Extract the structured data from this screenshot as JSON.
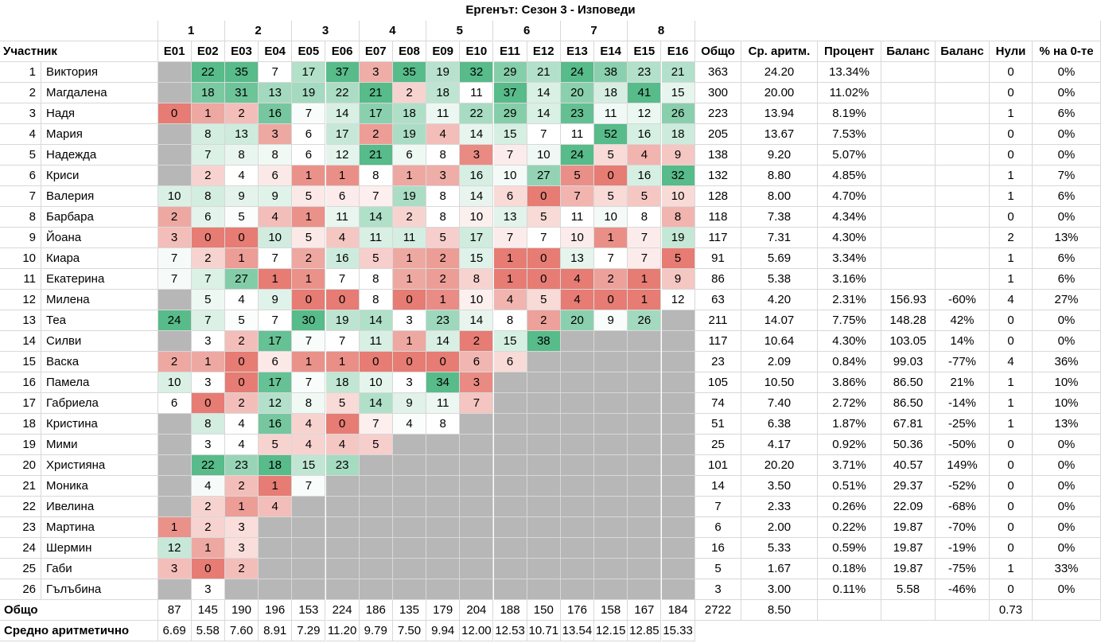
{
  "sheet": {
    "title": "Ергенът: Сезон 3 - Изповеди",
    "weeks": [
      "1",
      "2",
      "3",
      "4",
      "5",
      "6",
      "7",
      "8"
    ],
    "headers": [
      "Участник",
      "E01",
      "E02",
      "E03",
      "E04",
      "E05",
      "E06",
      "E07",
      "E08",
      "E09",
      "E10",
      "E11",
      "E12",
      "E13",
      "E14",
      "E15",
      "E16",
      "Общо",
      "Ср. аритм.",
      "Процент",
      "Баланс",
      "Баланс",
      "Нули",
      "% на 0-те"
    ],
    "rows": [
      {
        "n": "1",
        "name": "Виктория",
        "e": [
          null,
          "22",
          "35",
          "7",
          "17",
          "37",
          "3",
          "35",
          "19",
          "32",
          "29",
          "21",
          "24",
          "38",
          "23",
          "21"
        ],
        "total": "363",
        "avg": "24.20",
        "pct": "13.34%",
        "bal": "",
        "balp": "",
        "zeros": "0",
        "zpct": "0%"
      },
      {
        "n": "2",
        "name": "Магдалена",
        "e": [
          null,
          "18",
          "31",
          "13",
          "19",
          "22",
          "21",
          "2",
          "18",
          "11",
          "37",
          "14",
          "20",
          "18",
          "41",
          "15"
        ],
        "total": "300",
        "avg": "20.00",
        "pct": "11.02%",
        "bal": "",
        "balp": "",
        "zeros": "0",
        "zpct": "0%"
      },
      {
        "n": "3",
        "name": "Надя",
        "e": [
          "0",
          "1",
          "2",
          "16",
          "7",
          "14",
          "17",
          "18",
          "11",
          "22",
          "29",
          "14",
          "23",
          "11",
          "12",
          "26"
        ],
        "total": "223",
        "avg": "13.94",
        "pct": "8.19%",
        "bal": "",
        "balp": "",
        "zeros": "1",
        "zpct": "6%"
      },
      {
        "n": "4",
        "name": "Мария",
        "e": [
          null,
          "8",
          "13",
          "3",
          "6",
          "17",
          "2",
          "19",
          "4",
          "14",
          "15",
          "7",
          "11",
          "52",
          "16",
          "18"
        ],
        "total": "205",
        "avg": "13.67",
        "pct": "7.53%",
        "bal": "",
        "balp": "",
        "zeros": "0",
        "zpct": "0%"
      },
      {
        "n": "5",
        "name": "Надежда",
        "e": [
          null,
          "7",
          "8",
          "8",
          "6",
          "12",
          "21",
          "6",
          "8",
          "3",
          "7",
          "10",
          "24",
          "5",
          "4",
          "9"
        ],
        "total": "138",
        "avg": "9.20",
        "pct": "5.07%",
        "bal": "",
        "balp": "",
        "zeros": "0",
        "zpct": "0%"
      },
      {
        "n": "6",
        "name": "Криси",
        "e": [
          null,
          "2",
          "4",
          "6",
          "1",
          "1",
          "8",
          "1",
          "3",
          "16",
          "10",
          "27",
          "5",
          "0",
          "16",
          "32"
        ],
        "total": "132",
        "avg": "8.80",
        "pct": "4.85%",
        "bal": "",
        "balp": "",
        "zeros": "1",
        "zpct": "7%"
      },
      {
        "n": "7",
        "name": "Валерия",
        "e": [
          "10",
          "8",
          "9",
          "9",
          "5",
          "6",
          "7",
          "19",
          "8",
          "14",
          "6",
          "0",
          "7",
          "5",
          "5",
          "10"
        ],
        "total": "128",
        "avg": "8.00",
        "pct": "4.70%",
        "bal": "",
        "balp": "",
        "zeros": "1",
        "zpct": "6%"
      },
      {
        "n": "8",
        "name": "Барбара",
        "e": [
          "2",
          "6",
          "5",
          "4",
          "1",
          "11",
          "14",
          "2",
          "8",
          "10",
          "13",
          "5",
          "11",
          "10",
          "8",
          "8"
        ],
        "total": "118",
        "avg": "7.38",
        "pct": "4.34%",
        "bal": "",
        "balp": "",
        "zeros": "0",
        "zpct": "0%"
      },
      {
        "n": "9",
        "name": "Йоана",
        "e": [
          "3",
          "0",
          "0",
          "10",
          "5",
          "4",
          "11",
          "11",
          "5",
          "17",
          "7",
          "7",
          "10",
          "1",
          "7",
          "19"
        ],
        "total": "117",
        "avg": "7.31",
        "pct": "4.30%",
        "bal": "",
        "balp": "",
        "zeros": "2",
        "zpct": "13%"
      },
      {
        "n": "10",
        "name": "Киара",
        "e": [
          "7",
          "2",
          "1",
          "7",
          "2",
          "16",
          "5",
          "1",
          "2",
          "15",
          "1",
          "0",
          "13",
          "7",
          "7",
          "5"
        ],
        "total": "91",
        "avg": "5.69",
        "pct": "3.34%",
        "bal": "",
        "balp": "",
        "zeros": "1",
        "zpct": "6%"
      },
      {
        "n": "11",
        "name": "Екатерина",
        "e": [
          "7",
          "7",
          "27",
          "1",
          "1",
          "7",
          "8",
          "1",
          "2",
          "8",
          "1",
          "0",
          "4",
          "2",
          "1",
          "9"
        ],
        "total": "86",
        "avg": "5.38",
        "pct": "3.16%",
        "bal": "",
        "balp": "",
        "zeros": "1",
        "zpct": "6%"
      },
      {
        "n": "12",
        "name": "Милена",
        "e": [
          null,
          "5",
          "4",
          "9",
          "0",
          "0",
          "8",
          "0",
          "1",
          "10",
          "4",
          "5",
          "4",
          "0",
          "1",
          "12"
        ],
        "total": "63",
        "avg": "4.20",
        "pct": "2.31%",
        "bal": "156.93",
        "balp": "-60%",
        "zeros": "4",
        "zpct": "27%"
      },
      {
        "n": "13",
        "name": "Теа",
        "e": [
          "24",
          "7",
          "5",
          "7",
          "30",
          "19",
          "14",
          "3",
          "23",
          "14",
          "8",
          "2",
          "20",
          "9",
          "26",
          null
        ],
        "total": "211",
        "avg": "14.07",
        "pct": "7.75%",
        "bal": "148.28",
        "balp": "42%",
        "zeros": "0",
        "zpct": "0%"
      },
      {
        "n": "14",
        "name": "Силви",
        "e": [
          null,
          "3",
          "2",
          "17",
          "7",
          "7",
          "11",
          "1",
          "14",
          "2",
          "15",
          "38",
          null,
          null,
          null,
          null
        ],
        "total": "117",
        "avg": "10.64",
        "pct": "4.30%",
        "bal": "103.05",
        "balp": "14%",
        "zeros": "0",
        "zpct": "0%"
      },
      {
        "n": "15",
        "name": "Васка",
        "e": [
          "2",
          "1",
          "0",
          "6",
          "1",
          "1",
          "0",
          "0",
          "0",
          "6",
          "6",
          null,
          null,
          null,
          null,
          null
        ],
        "total": "23",
        "avg": "2.09",
        "pct": "0.84%",
        "bal": "99.03",
        "balp": "-77%",
        "zeros": "4",
        "zpct": "36%"
      },
      {
        "n": "16",
        "name": "Памела",
        "e": [
          "10",
          "3",
          "0",
          "17",
          "7",
          "18",
          "10",
          "3",
          "34",
          "3",
          null,
          null,
          null,
          null,
          null,
          null
        ],
        "total": "105",
        "avg": "10.50",
        "pct": "3.86%",
        "bal": "86.50",
        "balp": "21%",
        "zeros": "1",
        "zpct": "10%"
      },
      {
        "n": "17",
        "name": "Габриела",
        "e": [
          "6",
          "0",
          "2",
          "12",
          "8",
          "5",
          "14",
          "9",
          "11",
          "7",
          null,
          null,
          null,
          null,
          null,
          null
        ],
        "total": "74",
        "avg": "7.40",
        "pct": "2.72%",
        "bal": "86.50",
        "balp": "-14%",
        "zeros": "1",
        "zpct": "10%"
      },
      {
        "n": "18",
        "name": "Кристина",
        "e": [
          null,
          "8",
          "4",
          "16",
          "4",
          "0",
          "7",
          "4",
          "8",
          null,
          null,
          null,
          null,
          null,
          null,
          null
        ],
        "total": "51",
        "avg": "6.38",
        "pct": "1.87%",
        "bal": "67.81",
        "balp": "-25%",
        "zeros": "1",
        "zpct": "13%"
      },
      {
        "n": "19",
        "name": "Мими",
        "e": [
          null,
          "3",
          "4",
          "5",
          "4",
          "4",
          "5",
          null,
          null,
          null,
          null,
          null,
          null,
          null,
          null,
          null
        ],
        "total": "25",
        "avg": "4.17",
        "pct": "0.92%",
        "bal": "50.36",
        "balp": "-50%",
        "zeros": "0",
        "zpct": "0%"
      },
      {
        "n": "20",
        "name": "Християна",
        "e": [
          null,
          "22",
          "23",
          "18",
          "15",
          "23",
          null,
          null,
          null,
          null,
          null,
          null,
          null,
          null,
          null,
          null
        ],
        "total": "101",
        "avg": "20.20",
        "pct": "3.71%",
        "bal": "40.57",
        "balp": "149%",
        "zeros": "0",
        "zpct": "0%"
      },
      {
        "n": "21",
        "name": "Моника",
        "e": [
          null,
          "4",
          "2",
          "1",
          "7",
          null,
          null,
          null,
          null,
          null,
          null,
          null,
          null,
          null,
          null,
          null
        ],
        "total": "14",
        "avg": "3.50",
        "pct": "0.51%",
        "bal": "29.37",
        "balp": "-52%",
        "zeros": "0",
        "zpct": "0%"
      },
      {
        "n": "22",
        "name": "Ивелина",
        "e": [
          null,
          "2",
          "1",
          "4",
          null,
          null,
          null,
          null,
          null,
          null,
          null,
          null,
          null,
          null,
          null,
          null
        ],
        "total": "7",
        "avg": "2.33",
        "pct": "0.26%",
        "bal": "22.09",
        "balp": "-68%",
        "zeros": "0",
        "zpct": "0%"
      },
      {
        "n": "23",
        "name": "Мартина",
        "e": [
          "1",
          "2",
          "3",
          null,
          null,
          null,
          null,
          null,
          null,
          null,
          null,
          null,
          null,
          null,
          null,
          null
        ],
        "total": "6",
        "avg": "2.00",
        "pct": "0.22%",
        "bal": "19.87",
        "balp": "-70%",
        "zeros": "0",
        "zpct": "0%"
      },
      {
        "n": "24",
        "name": "Шермин",
        "e": [
          "12",
          "1",
          "3",
          null,
          null,
          null,
          null,
          null,
          null,
          null,
          null,
          null,
          null,
          null,
          null,
          null
        ],
        "total": "16",
        "avg": "5.33",
        "pct": "0.59%",
        "bal": "19.87",
        "balp": "-19%",
        "zeros": "0",
        "zpct": "0%"
      },
      {
        "n": "25",
        "name": "Габи",
        "e": [
          "3",
          "0",
          "2",
          null,
          null,
          null,
          null,
          null,
          null,
          null,
          null,
          null,
          null,
          null,
          null,
          null
        ],
        "total": "5",
        "avg": "1.67",
        "pct": "0.18%",
        "bal": "19.87",
        "balp": "-75%",
        "zeros": "1",
        "zpct": "33%"
      },
      {
        "n": "26",
        "name": "Гълъбина",
        "e": [
          null,
          "3",
          null,
          null,
          null,
          null,
          null,
          null,
          null,
          null,
          null,
          null,
          null,
          null,
          null,
          null
        ],
        "total": "3",
        "avg": "3.00",
        "pct": "0.11%",
        "bal": "5.58",
        "balp": "-46%",
        "zeros": "0",
        "zpct": "0%"
      }
    ],
    "total_row": {
      "label": "Общо",
      "e": [
        "87",
        "145",
        "190",
        "196",
        "153",
        "224",
        "186",
        "135",
        "179",
        "204",
        "188",
        "150",
        "176",
        "158",
        "167",
        "184"
      ],
      "total": "2722",
      "avg": "8.50",
      "zeros": "0.73"
    },
    "avg_row": {
      "label": "Средно аритметично",
      "e": [
        "6.69",
        "5.58",
        "7.60",
        "8.91",
        "7.29",
        "11.20",
        "9.79",
        "7.50",
        "9.94",
        "12.00",
        "12.53",
        "10.71",
        "13.54",
        "12.15",
        "12.85",
        "15.33"
      ]
    }
  },
  "colors": {
    "high_green": "#57bb8a",
    "mid_white": "#ffffff",
    "low_red": "#e67c73",
    "unavailable_gray": "#b7b7b7"
  }
}
